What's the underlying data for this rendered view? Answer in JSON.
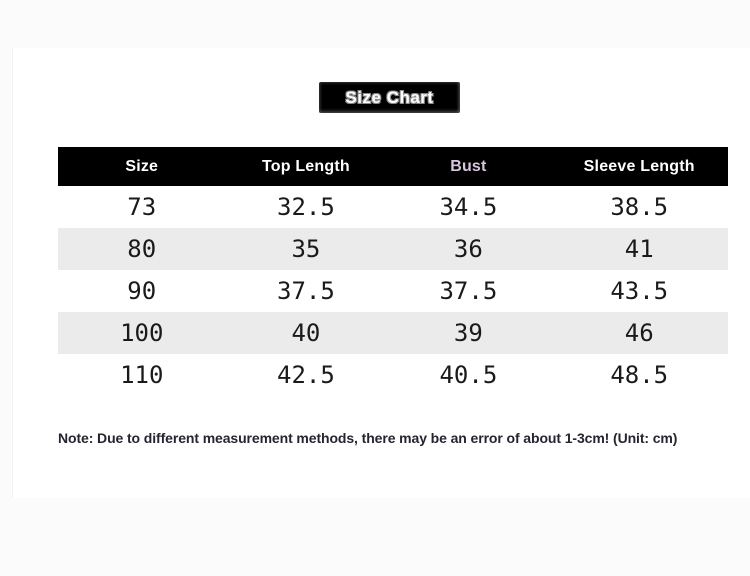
{
  "chart_data": {
    "type": "table",
    "title": "Size Chart",
    "columns": [
      {
        "label": "Size"
      },
      {
        "label": "Top Length"
      },
      {
        "label": "Bust"
      },
      {
        "label": "Sleeve Length"
      }
    ],
    "rows": [
      [
        "73",
        "32.5",
        "34.5",
        "38.5"
      ],
      [
        "80",
        "35",
        "36",
        "41"
      ],
      [
        "90",
        "37.5",
        "37.5",
        "43.5"
      ],
      [
        "100",
        "40",
        "39",
        "46"
      ],
      [
        "110",
        "42.5",
        "40.5",
        "48.5"
      ]
    ]
  },
  "note": "Note: Due to different measurement methods, there may be an error of about 1-3cm! (Unit: cm)",
  "colors": {
    "page_bg": "#fbfbfb",
    "card_bg": "#ffffff",
    "badge_bg": "#000000",
    "badge_text": "#fdfdfd",
    "header_bg": "#000000",
    "header_text": "#ffffff",
    "bust_header_text": "#d8c6de",
    "row_alt_bg": "#ebebeb",
    "cell_text": "#1a1a1a",
    "note_text": "#25252f"
  }
}
